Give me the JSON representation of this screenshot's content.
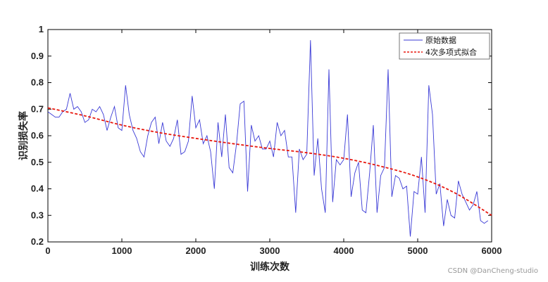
{
  "chart_data": {
    "type": "line",
    "xlabel": "训练次数",
    "ylabel": "识别损失率",
    "xlim": [
      0,
      6000
    ],
    "ylim": [
      0.2,
      1
    ],
    "xticks": [
      "0",
      "1000",
      "2000",
      "3000",
      "4000",
      "5000",
      "6000"
    ],
    "yticks": [
      "0.2",
      "0.3",
      "0.4",
      "0.5",
      "0.6",
      "0.7",
      "0.8",
      "0.9",
      "1"
    ],
    "legend_position": "top-right",
    "series": [
      {
        "name": "原始数据",
        "color": "#3a3ad6",
        "style": "solid",
        "x": [
          0,
          50,
          100,
          150,
          200,
          250,
          300,
          350,
          400,
          450,
          500,
          550,
          600,
          650,
          700,
          750,
          800,
          850,
          900,
          950,
          1000,
          1050,
          1100,
          1150,
          1200,
          1250,
          1300,
          1350,
          1400,
          1450,
          1500,
          1550,
          1600,
          1650,
          1700,
          1750,
          1800,
          1850,
          1900,
          1950,
          2000,
          2050,
          2100,
          2150,
          2200,
          2250,
          2300,
          2350,
          2400,
          2450,
          2500,
          2550,
          2600,
          2650,
          2700,
          2750,
          2800,
          2850,
          2900,
          2950,
          3000,
          3050,
          3100,
          3150,
          3200,
          3250,
          3300,
          3350,
          3400,
          3450,
          3500,
          3550,
          3600,
          3650,
          3700,
          3750,
          3800,
          3850,
          3900,
          3950,
          4000,
          4050,
          4100,
          4150,
          4200,
          4250,
          4300,
          4350,
          4400,
          4450,
          4500,
          4550,
          4600,
          4650,
          4700,
          4750,
          4800,
          4850,
          4900,
          4950,
          5000,
          5050,
          5100,
          5150,
          5200,
          5250,
          5300,
          5350,
          5400,
          5450,
          5500,
          5550,
          5600,
          5650,
          5700,
          5750,
          5800,
          5850,
          5900,
          5950
        ],
        "y": [
          0.69,
          0.68,
          0.67,
          0.67,
          0.69,
          0.7,
          0.76,
          0.7,
          0.71,
          0.69,
          0.65,
          0.66,
          0.7,
          0.69,
          0.71,
          0.68,
          0.62,
          0.67,
          0.71,
          0.63,
          0.62,
          0.79,
          0.68,
          0.62,
          0.59,
          0.54,
          0.52,
          0.6,
          0.65,
          0.67,
          0.57,
          0.65,
          0.58,
          0.56,
          0.59,
          0.66,
          0.53,
          0.54,
          0.58,
          0.75,
          0.63,
          0.66,
          0.57,
          0.6,
          0.54,
          0.4,
          0.65,
          0.52,
          0.68,
          0.48,
          0.46,
          0.57,
          0.72,
          0.73,
          0.39,
          0.64,
          0.58,
          0.6,
          0.55,
          0.55,
          0.58,
          0.52,
          0.65,
          0.6,
          0.62,
          0.52,
          0.52,
          0.31,
          0.55,
          0.51,
          0.53,
          0.96,
          0.45,
          0.59,
          0.4,
          0.31,
          0.85,
          0.35,
          0.51,
          0.49,
          0.51,
          0.68,
          0.37,
          0.46,
          0.5,
          0.32,
          0.31,
          0.46,
          0.64,
          0.31,
          0.45,
          0.48,
          0.85,
          0.37,
          0.45,
          0.44,
          0.4,
          0.41,
          0.22,
          0.39,
          0.38,
          0.52,
          0.31,
          0.79,
          0.68,
          0.38,
          0.42,
          0.26,
          0.36,
          0.3,
          0.29,
          0.43,
          0.38,
          0.35,
          0.32,
          0.34,
          0.39,
          0.28,
          0.27,
          0.28
        ]
      },
      {
        "name": "4次多项式拟合",
        "color": "#e8190f",
        "style": "dashed",
        "x": [
          0,
          500,
          1000,
          1500,
          2000,
          2500,
          3000,
          3500,
          4000,
          4500,
          5000,
          5500,
          6000
        ],
        "y": [
          0.705,
          0.675,
          0.64,
          0.612,
          0.59,
          0.57,
          0.552,
          0.536,
          0.515,
          0.485,
          0.445,
          0.385,
          0.3
        ]
      }
    ]
  },
  "watermark": "CSDN @DanCheng-studio"
}
